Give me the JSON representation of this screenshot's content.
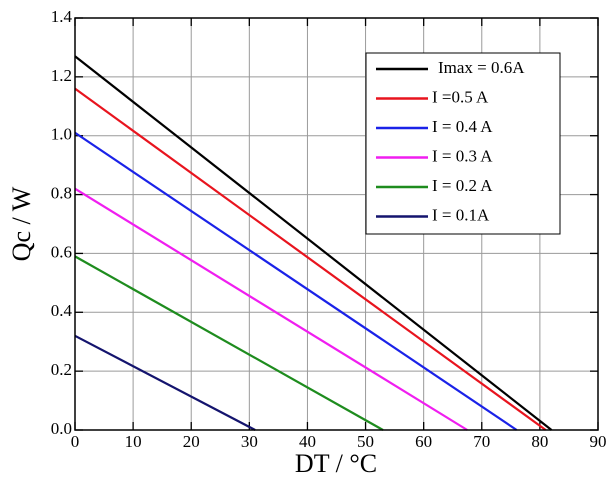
{
  "chart_data": {
    "type": "line",
    "x_label": "DT / °C",
    "y_label": "Qc / W",
    "xlim": [
      0,
      90
    ],
    "ylim": [
      0,
      1.4
    ],
    "xticks": [
      0,
      10,
      20,
      30,
      40,
      50,
      60,
      70,
      80,
      90
    ],
    "yticks": [
      {
        "value": 0,
        "label": "0.0"
      },
      0.2,
      0.4,
      0.6,
      0.8,
      {
        "value": 1,
        "label": "1.0"
      },
      1.2,
      1.4
    ],
    "grid": true,
    "legend": "upper right",
    "series": [
      {
        "name": "Imax = 0.6A",
        "color": "#000000",
        "x": [
          0,
          82
        ],
        "values": [
          1.27,
          0
        ]
      },
      {
        "name": "I =0.5 A",
        "color": "#e8141e",
        "x": [
          0,
          81
        ],
        "values": [
          1.16,
          0
        ]
      },
      {
        "name": "I = 0.4 A",
        "color": "#1a22e8",
        "x": [
          0,
          76
        ],
        "values": [
          1.01,
          0
        ]
      },
      {
        "name": "I = 0.3 A",
        "color": "#f01ef0",
        "x": [
          0,
          67.5
        ],
        "values": [
          0.82,
          0
        ]
      },
      {
        "name": "I = 0.2 A",
        "color": "#1e8c1e",
        "x": [
          0,
          53
        ],
        "values": [
          0.59,
          0
        ]
      },
      {
        "name": "I = 0.1A",
        "color": "#14146e",
        "x": [
          0,
          31
        ],
        "values": [
          0.32,
          0
        ]
      }
    ]
  }
}
